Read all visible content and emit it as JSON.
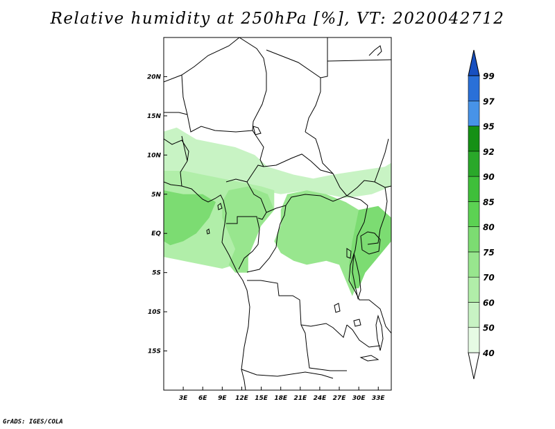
{
  "title": "Relative humidity at 250hPa [%], VT: 2020042712",
  "credit": "GrADS: IGES/COLA",
  "map": {
    "lon_range": [
      0,
      35
    ],
    "lat_range": [
      -20,
      25
    ],
    "lat_ticks": [
      {
        "value": 20,
        "label": "20N"
      },
      {
        "value": 15,
        "label": "15N"
      },
      {
        "value": 10,
        "label": "10N"
      },
      {
        "value": 5,
        "label": "5N"
      },
      {
        "value": 0,
        "label": "EQ"
      },
      {
        "value": -5,
        "label": "5S"
      },
      {
        "value": -10,
        "label": "10S"
      },
      {
        "value": -15,
        "label": "15S"
      }
    ],
    "lon_ticks": [
      {
        "value": 3,
        "label": "3E"
      },
      {
        "value": 6,
        "label": "6E"
      },
      {
        "value": 9,
        "label": "9E"
      },
      {
        "value": 12,
        "label": "12E"
      },
      {
        "value": 15,
        "label": "15E"
      },
      {
        "value": 18,
        "label": "18E"
      },
      {
        "value": 21,
        "label": "21E"
      },
      {
        "value": 24,
        "label": "24E"
      },
      {
        "value": 27,
        "label": "27E"
      },
      {
        "value": 30,
        "label": "30E"
      },
      {
        "value": 33,
        "label": "33E"
      }
    ]
  },
  "colorbar": {
    "levels": [
      {
        "label": "40",
        "color": "#ffffff"
      },
      {
        "label": "50",
        "color": "#e6fbe4"
      },
      {
        "label": "60",
        "color": "#c8f3c4"
      },
      {
        "label": "70",
        "color": "#b1eea9"
      },
      {
        "label": "75",
        "color": "#98e68e"
      },
      {
        "label": "80",
        "color": "#7cdc72"
      },
      {
        "label": "85",
        "color": "#5cd253"
      },
      {
        "label": "90",
        "color": "#3fbf3a"
      },
      {
        "label": "92",
        "color": "#2aa82a"
      },
      {
        "label": "95",
        "color": "#159015"
      },
      {
        "label": "97",
        "color": "#4793e8"
      },
      {
        "label": "99",
        "color": "#2a70d8"
      }
    ],
    "top_color": "#1850c0"
  },
  "humidity_zones": [
    {
      "name": "sahel-band",
      "value": 60,
      "color": "#c8f3c4",
      "points": [
        [
          0,
          13
        ],
        [
          2,
          13.5
        ],
        [
          5,
          12
        ],
        [
          8,
          11.5
        ],
        [
          11,
          11
        ],
        [
          14,
          10
        ],
        [
          16,
          8.5
        ],
        [
          20,
          7.5
        ],
        [
          23,
          7
        ],
        [
          26,
          7.5
        ],
        [
          30,
          8
        ],
        [
          34,
          8.5
        ],
        [
          35,
          9
        ],
        [
          35,
          6
        ],
        [
          32,
          5
        ],
        [
          28,
          4.5
        ],
        [
          25,
          5
        ],
        [
          22,
          5.5
        ],
        [
          18,
          5
        ],
        [
          15,
          5.5
        ],
        [
          12,
          6
        ],
        [
          9,
          6.5
        ],
        [
          6,
          7
        ],
        [
          3,
          8
        ],
        [
          0,
          8
        ]
      ]
    },
    {
      "name": "gulf-guinea",
      "value": 70,
      "color": "#b1eea9",
      "points": [
        [
          0,
          8
        ],
        [
          3,
          8
        ],
        [
          6,
          7.5
        ],
        [
          9,
          7
        ],
        [
          12,
          6.5
        ],
        [
          15,
          6
        ],
        [
          17,
          5.5
        ],
        [
          17,
          3
        ],
        [
          15,
          1
        ],
        [
          13,
          0
        ],
        [
          12,
          -2
        ],
        [
          11,
          -4
        ],
        [
          9,
          -4.5
        ],
        [
          6,
          -4
        ],
        [
          3,
          -3.5
        ],
        [
          0,
          -3
        ]
      ]
    },
    {
      "name": "congo-basin",
      "value": 75,
      "color": "#98e68e",
      "points": [
        [
          19,
          5
        ],
        [
          22,
          5.5
        ],
        [
          25,
          5
        ],
        [
          28,
          4
        ],
        [
          30,
          3
        ],
        [
          32,
          2.5
        ],
        [
          34,
          1
        ],
        [
          33,
          -1
        ],
        [
          31,
          -3
        ],
        [
          30,
          -6
        ],
        [
          29,
          -8
        ],
        [
          28,
          -6
        ],
        [
          27,
          -4
        ],
        [
          25,
          -3.5
        ],
        [
          22,
          -4
        ],
        [
          20,
          -3.5
        ],
        [
          18,
          -2.5
        ],
        [
          17,
          -1
        ],
        [
          18,
          1
        ],
        [
          18,
          3
        ]
      ]
    },
    {
      "name": "central-west",
      "value": 75,
      "color": "#98e68e",
      "points": [
        [
          10,
          5.5
        ],
        [
          13,
          6
        ],
        [
          16,
          5
        ],
        [
          17,
          3
        ],
        [
          15,
          1
        ],
        [
          14,
          -1
        ],
        [
          13,
          -3
        ],
        [
          13,
          -5
        ],
        [
          11,
          -5
        ],
        [
          10,
          -4
        ],
        [
          11,
          -2
        ],
        [
          10,
          0
        ],
        [
          9,
          2
        ],
        [
          9,
          4
        ]
      ]
    },
    {
      "name": "west-coast",
      "value": 80,
      "color": "#7cdc72",
      "points": [
        [
          0,
          5.5
        ],
        [
          3,
          5
        ],
        [
          6,
          5
        ],
        [
          8,
          4
        ],
        [
          7,
          2
        ],
        [
          5,
          0
        ],
        [
          3,
          -1
        ],
        [
          1,
          -1.5
        ],
        [
          0,
          -1
        ]
      ]
    },
    {
      "name": "lake-region",
      "value": 80,
      "color": "#7cdc72",
      "points": [
        [
          30,
          3
        ],
        [
          33,
          3.5
        ],
        [
          35,
          2
        ],
        [
          35,
          -1
        ],
        [
          33,
          -3
        ],
        [
          31,
          -5
        ],
        [
          30,
          -7
        ],
        [
          29,
          -7
        ],
        [
          28.5,
          -4
        ],
        [
          29,
          -1
        ]
      ]
    }
  ]
}
